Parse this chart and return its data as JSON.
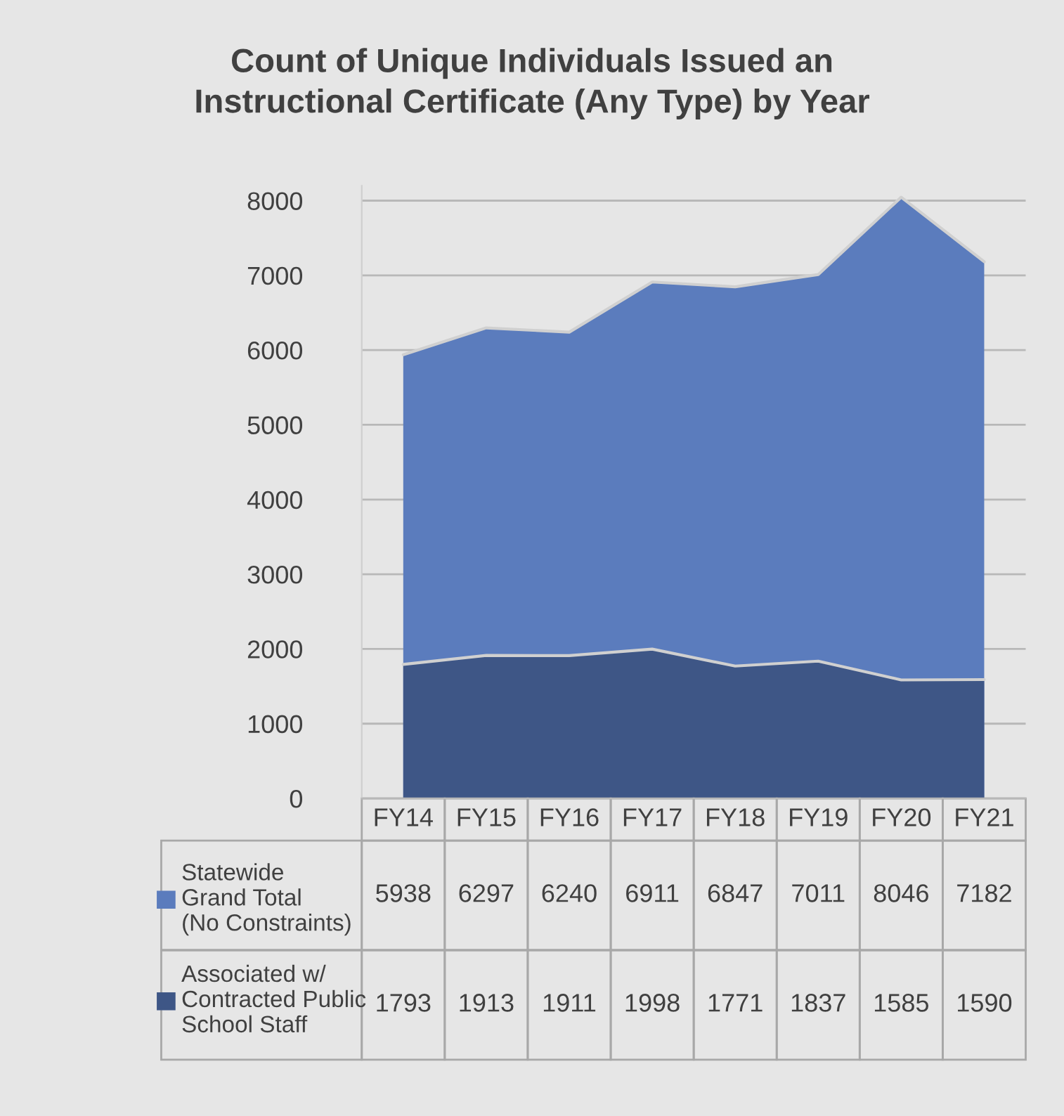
{
  "chart_data": {
    "type": "area",
    "title": "Count of Unique Individuals Issued an\nInstructional Certificate (Any Type) by Year",
    "categories": [
      "FY14",
      "FY15",
      "FY16",
      "FY17",
      "FY18",
      "FY19",
      "FY20",
      "FY21"
    ],
    "series": [
      {
        "name": "Statewide\nGrand Total\n(No Constraints)",
        "color": "#5b7cbd",
        "values": [
          5938,
          6297,
          6240,
          6911,
          6847,
          7011,
          8046,
          7182
        ]
      },
      {
        "name": "Associated w/\nContracted Public\nSchool Staff",
        "color": "#3e5686",
        "values": [
          1793,
          1913,
          1911,
          1998,
          1771,
          1837,
          1585,
          1590
        ]
      }
    ],
    "ylim": [
      0,
      8200
    ],
    "yticks": [
      0,
      1000,
      2000,
      3000,
      4000,
      5000,
      6000,
      7000,
      8000
    ],
    "grid": "y",
    "data_labels": true,
    "legend": "bottom left"
  }
}
